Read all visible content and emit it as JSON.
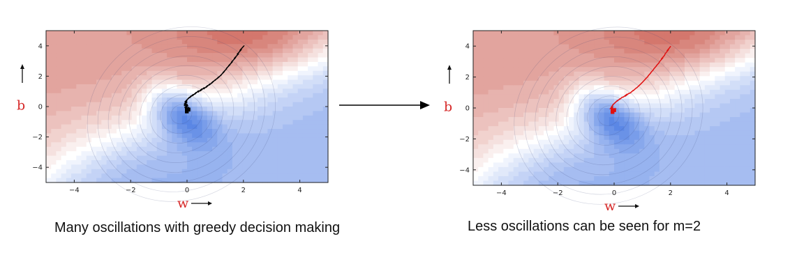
{
  "captions": {
    "left": "Many oscillations with greedy decision making",
    "right": "Less oscillations can be seen for m=2"
  },
  "chart_data": [
    {
      "type": "contour",
      "xlabel": "w",
      "ylabel": "b",
      "xlim": [
        -5,
        5
      ],
      "ylim": [
        -5,
        5
      ],
      "xticks": [
        -4,
        -2,
        0,
        2,
        4
      ],
      "yticks": [
        -4,
        -2,
        0,
        2,
        4
      ],
      "colormap": [
        "#3b6fe0",
        "#ffffff",
        "#c0392b"
      ],
      "path_color": "#000000",
      "path": [
        [
          2.0,
          4.0
        ],
        [
          1.8,
          3.45
        ],
        [
          1.6,
          2.95
        ],
        [
          1.4,
          2.5
        ],
        [
          1.2,
          2.05
        ],
        [
          1.0,
          1.75
        ],
        [
          0.8,
          1.45
        ],
        [
          0.6,
          1.2
        ],
        [
          0.4,
          1.0
        ],
        [
          0.2,
          0.75
        ],
        [
          0.05,
          0.55
        ],
        [
          -0.05,
          0.35
        ],
        [
          -0.05,
          0.1
        ],
        [
          0.0,
          -0.1
        ],
        [
          0.05,
          -0.3
        ]
      ],
      "minimum": [
        -0.2,
        -0.5
      ]
    },
    {
      "type": "contour",
      "xlabel": "w",
      "ylabel": "b",
      "xlim": [
        -5,
        5
      ],
      "ylim": [
        -5,
        5
      ],
      "xticks": [
        -4,
        -2,
        0,
        2,
        4
      ],
      "yticks": [
        -4,
        -2,
        0,
        2,
        4
      ],
      "colormap": [
        "#3b6fe0",
        "#ffffff",
        "#c0392b"
      ],
      "path_color": "#e01010",
      "path": [
        [
          2.0,
          4.0
        ],
        [
          1.8,
          3.45
        ],
        [
          1.6,
          2.95
        ],
        [
          1.4,
          2.5
        ],
        [
          1.2,
          2.05
        ],
        [
          1.0,
          1.65
        ],
        [
          0.8,
          1.3
        ],
        [
          0.55,
          0.95
        ],
        [
          0.3,
          0.7
        ],
        [
          0.1,
          0.45
        ],
        [
          -0.05,
          0.2
        ],
        [
          -0.1,
          0.0
        ],
        [
          -0.05,
          -0.15
        ]
      ],
      "minimum": [
        -0.2,
        -0.5
      ]
    }
  ]
}
